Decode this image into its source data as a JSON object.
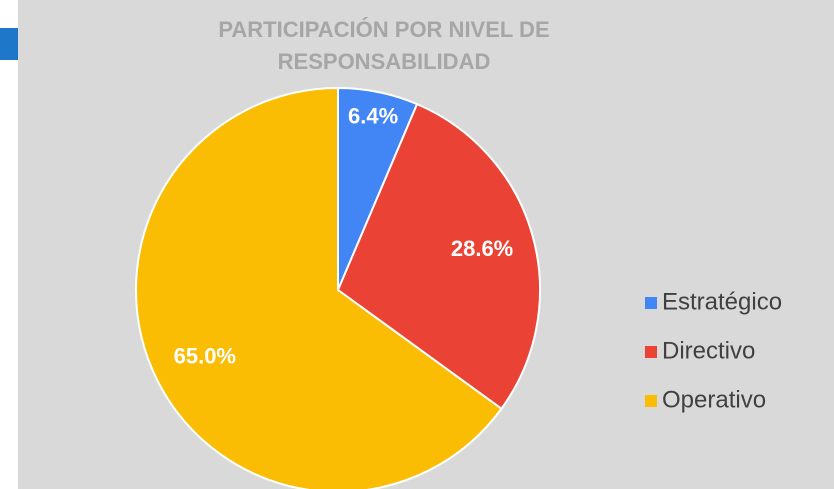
{
  "chart_data": {
    "type": "pie",
    "title": "PARTICIPACIÓN POR NIVEL DE RESPONSABILIDAD",
    "categories": [
      "Estratégico",
      "Directivo",
      "Operativo"
    ],
    "values": [
      6.4,
      28.6,
      65.0
    ],
    "value_labels": [
      "6.4%",
      "28.6%",
      "65.0%"
    ],
    "colors": [
      "#4285f4",
      "#ea4335",
      "#fbbc04"
    ],
    "legend": "right"
  }
}
